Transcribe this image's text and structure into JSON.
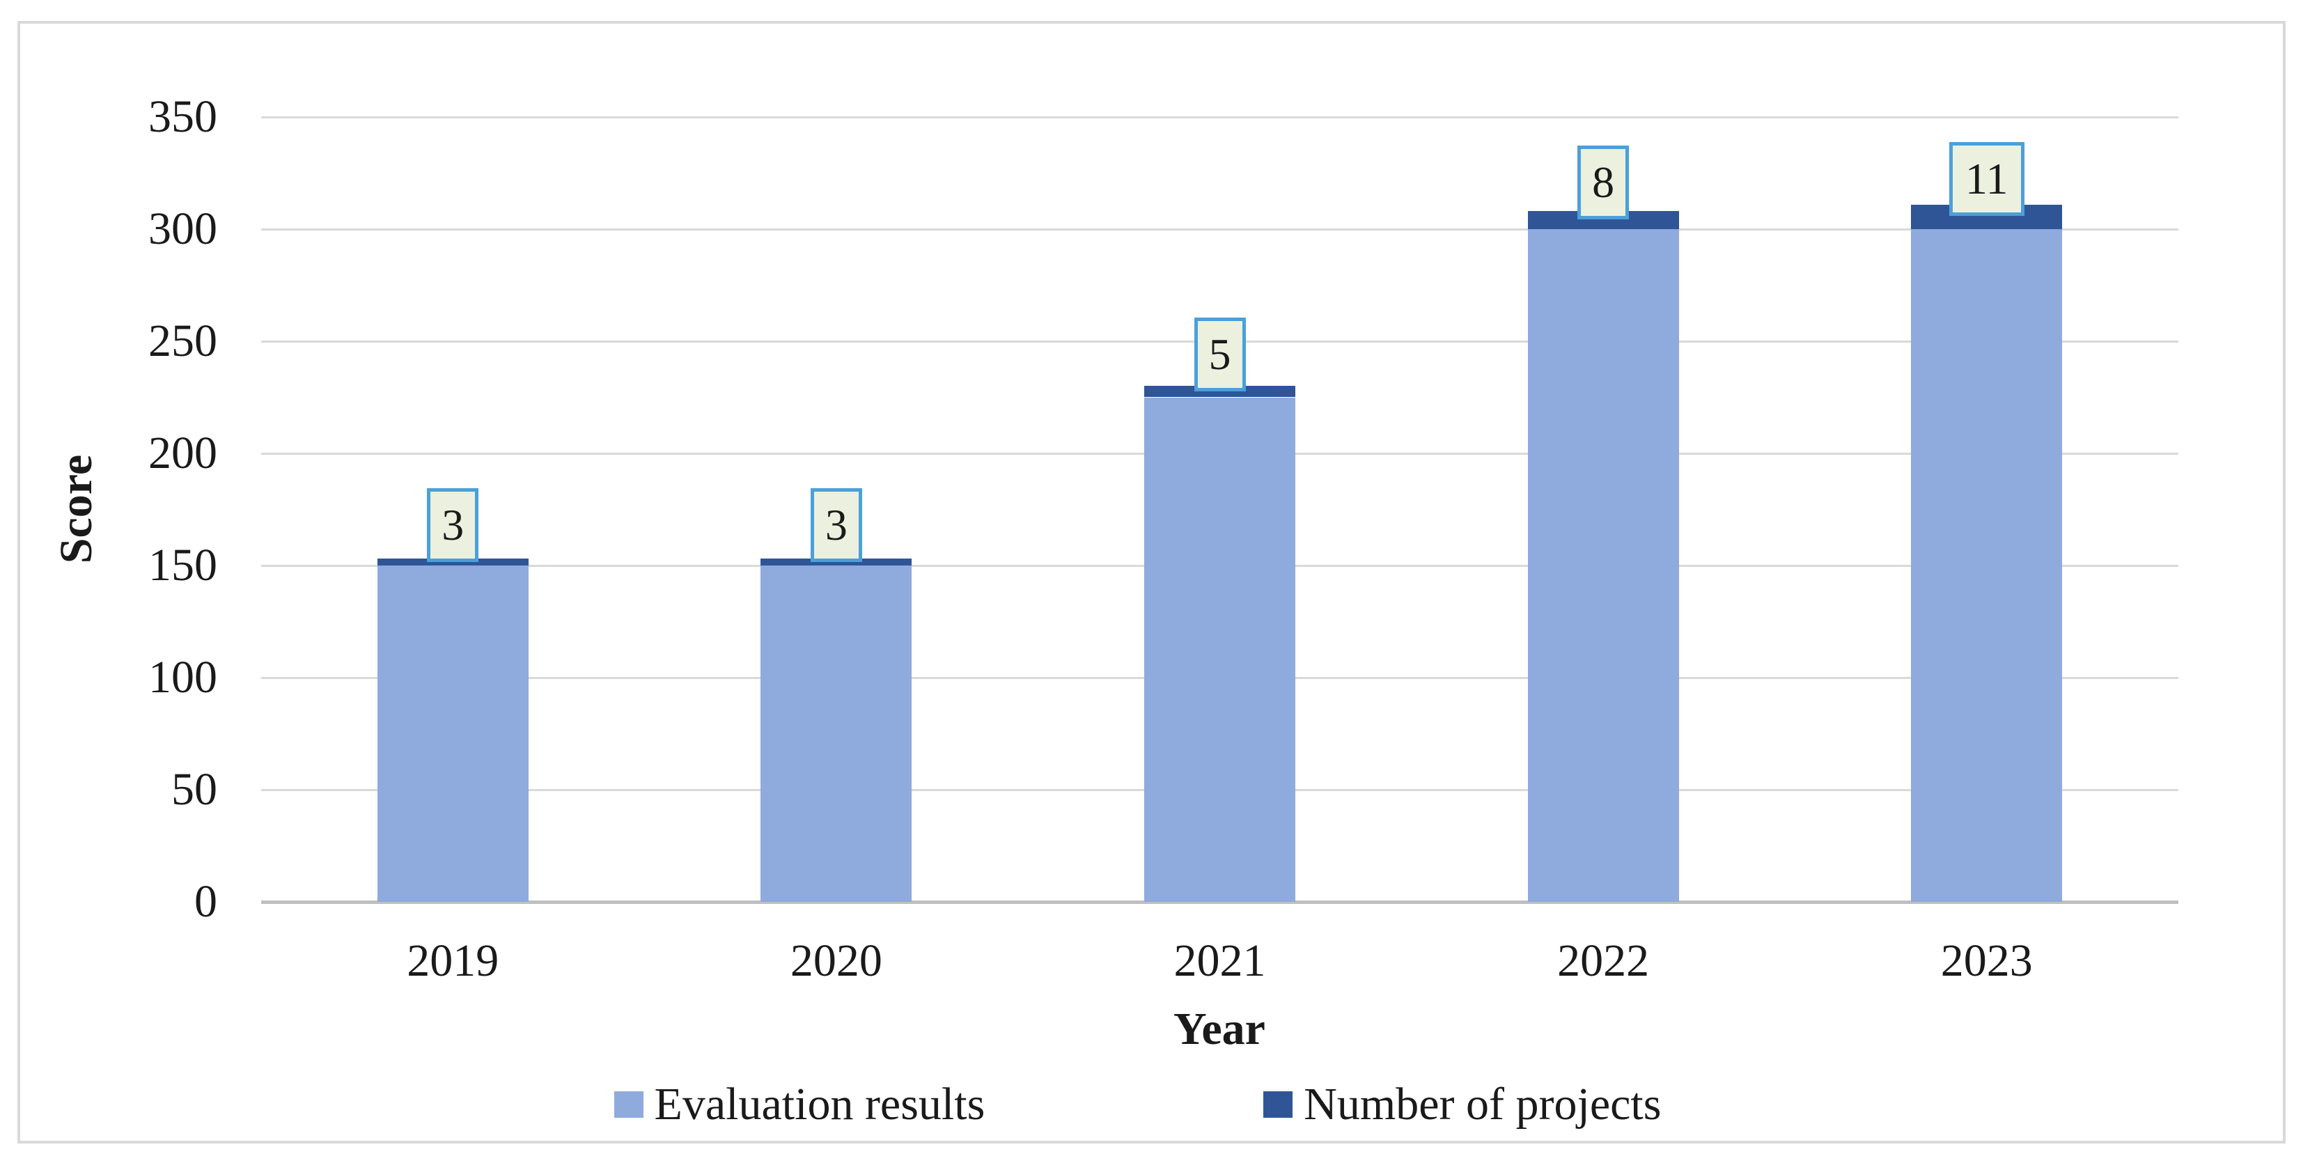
{
  "chart_data": {
    "type": "bar",
    "stacked": true,
    "title": "",
    "xlabel": "Year",
    "ylabel": "Score",
    "categories": [
      "2019",
      "2020",
      "2021",
      "2022",
      "2023"
    ],
    "series": [
      {
        "name": "Evaluation results",
        "color": "#8FAADC",
        "values": [
          150,
          150,
          225,
          300,
          300
        ]
      },
      {
        "name": "Number of projects",
        "color": "#2F5597",
        "values": [
          3,
          3,
          5,
          8,
          11
        ]
      }
    ],
    "stack_totals": [
      153,
      153,
      230,
      308,
      311
    ],
    "data_labels": {
      "values": [
        "3",
        "3",
        "5",
        "8",
        "11"
      ],
      "box_fill": "#EBF1DE",
      "box_border": "#4BA0DA"
    },
    "ylim": [
      0,
      350
    ],
    "yticks": [
      0,
      50,
      100,
      150,
      200,
      250,
      300,
      350
    ],
    "grid": true,
    "gridline_color": "#D9D9D9",
    "axis_line_color": "#BFBFBF",
    "legend_position": "bottom"
  }
}
